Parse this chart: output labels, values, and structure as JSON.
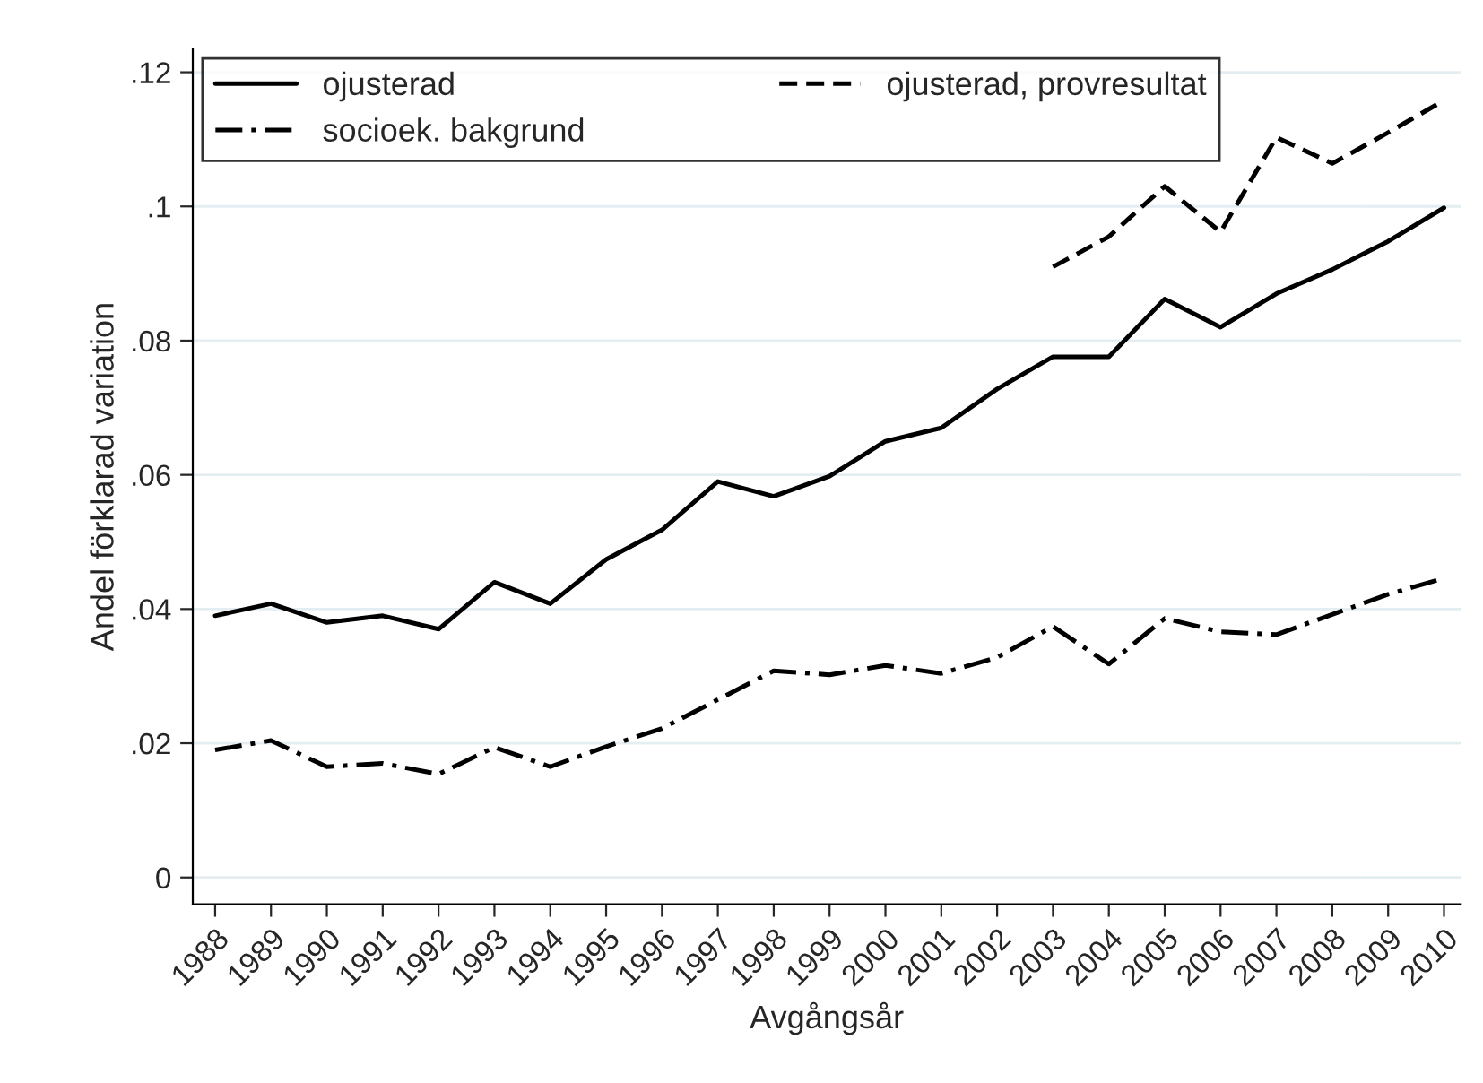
{
  "chart_data": {
    "type": "line",
    "xlabel": "Avgångsår",
    "ylabel": "Andel förklarad variation",
    "x": [
      1988,
      1989,
      1990,
      1991,
      1992,
      1993,
      1994,
      1995,
      1996,
      1997,
      1998,
      1999,
      2000,
      2001,
      2002,
      2003,
      2004,
      2005,
      2006,
      2007,
      2008,
      2009,
      2010
    ],
    "series": [
      {
        "name": "ojusterad",
        "color": "#000000",
        "line_style": "solid",
        "values": [
          0.039,
          0.0408,
          0.038,
          0.039,
          0.037,
          0.044,
          0.0408,
          0.0474,
          0.0518,
          0.059,
          0.0568,
          0.0598,
          0.065,
          0.067,
          0.0728,
          0.0776,
          0.0776,
          0.0862,
          0.082,
          0.087,
          0.0906,
          0.0948,
          0.0998
        ]
      },
      {
        "name": "ojusterad, provresultat",
        "color": "#000000",
        "line_style": "dashed",
        "values": [
          null,
          null,
          null,
          null,
          null,
          null,
          null,
          null,
          null,
          null,
          null,
          null,
          null,
          null,
          null,
          0.091,
          0.0955,
          0.103,
          0.0962,
          0.1103,
          0.1064,
          0.111,
          0.1158
        ]
      },
      {
        "name": "socioek. bakgrund",
        "color": "#000000",
        "line_style": "dashdot",
        "values": [
          0.019,
          0.0204,
          0.0165,
          0.017,
          0.0154,
          0.0194,
          0.0165,
          0.0195,
          0.0222,
          0.0265,
          0.0308,
          0.0302,
          0.0316,
          0.0304,
          0.0328,
          0.0374,
          0.0318,
          0.0386,
          0.0366,
          0.0362,
          0.0392,
          0.0422,
          0.0446
        ]
      }
    ],
    "xlim": [
      1987.6,
      2010.3
    ],
    "xticks": [
      1988,
      1989,
      1990,
      1991,
      1992,
      1993,
      1994,
      1995,
      1996,
      1997,
      1998,
      1999,
      2000,
      2001,
      2002,
      2003,
      2004,
      2005,
      2006,
      2007,
      2008,
      2009,
      2010
    ],
    "ylim": [
      -0.004,
      0.1235
    ],
    "yticks": [
      {
        "value": 0,
        "label": "0"
      },
      {
        "value": 0.02,
        "label": ".02"
      },
      {
        "value": 0.04,
        "label": ".04"
      },
      {
        "value": 0.06,
        "label": ".06"
      },
      {
        "value": 0.08,
        "label": ".08"
      },
      {
        "value": 0.1,
        "label": ".1"
      },
      {
        "value": 0.12,
        "label": ".12"
      }
    ],
    "grid": "y",
    "legend": "top left"
  }
}
